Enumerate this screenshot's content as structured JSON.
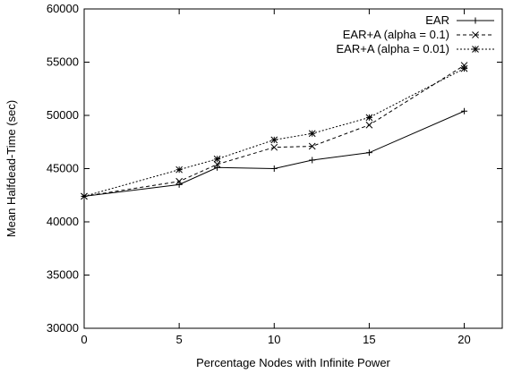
{
  "chart_data": {
    "type": "line",
    "title": "",
    "xlabel": "Percentage Nodes with Infinite Power",
    "ylabel": "Mean Halfdead-Time (sec)",
    "xlim": [
      0,
      22
    ],
    "ylim": [
      30000,
      60000
    ],
    "xticks": [
      0,
      5,
      10,
      15,
      20
    ],
    "yticks": [
      30000,
      35000,
      40000,
      45000,
      50000,
      55000,
      60000
    ],
    "grid": false,
    "legend_position": "top-right",
    "series": [
      {
        "name": "EAR",
        "marker": "plus",
        "dash": "solid",
        "color": "#000000",
        "points": [
          [
            0,
            42400
          ],
          [
            5,
            43500
          ],
          [
            7,
            45100
          ],
          [
            10,
            45000
          ],
          [
            12,
            45800
          ],
          [
            15,
            46500
          ],
          [
            20,
            50400
          ]
        ]
      },
      {
        "name": "EAR+A (alpha = 0.1)",
        "marker": "cross",
        "dash": "dashed",
        "color": "#000000",
        "points": [
          [
            0,
            42400
          ],
          [
            5,
            43800
          ],
          [
            7,
            45400
          ],
          [
            10,
            47000
          ],
          [
            12,
            47100
          ],
          [
            15,
            49100
          ],
          [
            20,
            54700
          ]
        ]
      },
      {
        "name": "EAR+A (alpha = 0.01)",
        "marker": "star",
        "dash": "dotted",
        "color": "#000000",
        "points": [
          [
            0,
            42400
          ],
          [
            5,
            44900
          ],
          [
            7,
            45900
          ],
          [
            10,
            47700
          ],
          [
            12,
            48300
          ],
          [
            15,
            49800
          ],
          [
            20,
            54400
          ]
        ]
      }
    ]
  }
}
